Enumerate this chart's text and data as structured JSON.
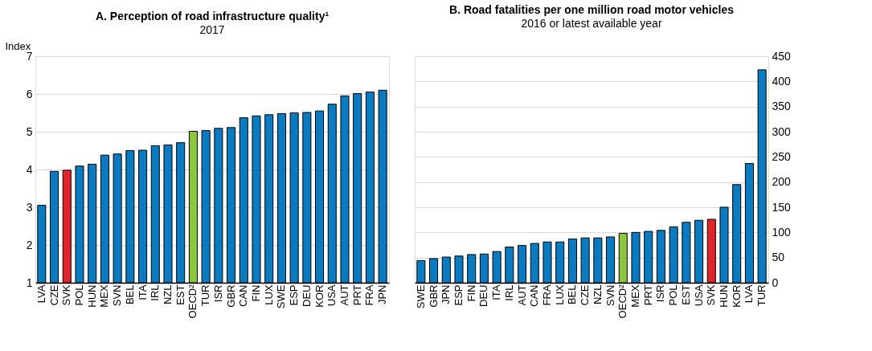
{
  "chart_data": [
    {
      "type": "bar",
      "title": "A. Perception of road infrastructure quality¹",
      "subtitle": "2017",
      "ylabel": "Index",
      "categories": [
        "LVA",
        "CZE",
        "SVK",
        "POL",
        "HUN",
        "MEX",
        "SVN",
        "BEL",
        "ITA",
        "IRL",
        "NZL",
        "EST",
        "OECD²",
        "TUR",
        "ISR",
        "GBR",
        "CAN",
        "FIN",
        "LUX",
        "SWE",
        "ESP",
        "DEU",
        "KOR",
        "USA",
        "AUT",
        "PRT",
        "FRA",
        "JPN"
      ],
      "values": [
        3.05,
        3.95,
        3.98,
        4.09,
        4.14,
        4.38,
        4.41,
        4.5,
        4.51,
        4.63,
        4.65,
        4.71,
        5.01,
        5.03,
        5.09,
        5.11,
        5.37,
        5.42,
        5.45,
        5.48,
        5.5,
        5.51,
        5.55,
        5.73,
        5.95,
        6.01,
        6.05,
        6.1
      ],
      "colors": [
        "#0b7bc1",
        "#0b7bc1",
        "#e0242a",
        "#0b7bc1",
        "#0b7bc1",
        "#0b7bc1",
        "#0b7bc1",
        "#0b7bc1",
        "#0b7bc1",
        "#0b7bc1",
        "#0b7bc1",
        "#0b7bc1",
        "#8cc63f",
        "#0b7bc1",
        "#0b7bc1",
        "#0b7bc1",
        "#0b7bc1",
        "#0b7bc1",
        "#0b7bc1",
        "#0b7bc1",
        "#0b7bc1",
        "#0b7bc1",
        "#0b7bc1",
        "#0b7bc1",
        "#0b7bc1",
        "#0b7bc1",
        "#0b7bc1",
        "#0b7bc1"
      ],
      "ylim": [
        1,
        7
      ],
      "yticks": [
        1,
        2,
        3,
        4,
        5,
        6,
        7
      ],
      "grid": "y"
    },
    {
      "type": "bar",
      "title": "B. Road fatalities per one million road motor vehicles",
      "subtitle": "2016 or latest available year",
      "categories": [
        "SWE",
        "GBR",
        "JPN",
        "ESP",
        "FIN",
        "DEU",
        "ITA",
        "IRL",
        "AUT",
        "CAN",
        "FRA",
        "LUX",
        "BEL",
        "CZE",
        "NZL",
        "SVN",
        "OECD²",
        "MEX",
        "PRT",
        "ISR",
        "POL",
        "EST",
        "USA",
        "SVK",
        "HUN",
        "KOR",
        "LVA",
        "TUR"
      ],
      "values": [
        44,
        48,
        51,
        53,
        56,
        57,
        62,
        71,
        74,
        78,
        81,
        81,
        87,
        89,
        89,
        91,
        98,
        100,
        102,
        104,
        111,
        120,
        124,
        126,
        150,
        195,
        237,
        423
      ],
      "colors": [
        "#0b7bc1",
        "#0b7bc1",
        "#0b7bc1",
        "#0b7bc1",
        "#0b7bc1",
        "#0b7bc1",
        "#0b7bc1",
        "#0b7bc1",
        "#0b7bc1",
        "#0b7bc1",
        "#0b7bc1",
        "#0b7bc1",
        "#0b7bc1",
        "#0b7bc1",
        "#0b7bc1",
        "#0b7bc1",
        "#8cc63f",
        "#0b7bc1",
        "#0b7bc1",
        "#0b7bc1",
        "#0b7bc1",
        "#0b7bc1",
        "#0b7bc1",
        "#e0242a",
        "#0b7bc1",
        "#0b7bc1",
        "#0b7bc1",
        "#0b7bc1"
      ],
      "ylim": [
        0,
        450
      ],
      "yticks": [
        0,
        50,
        100,
        150,
        200,
        250,
        300,
        350,
        400,
        450
      ],
      "grid": "y"
    }
  ]
}
